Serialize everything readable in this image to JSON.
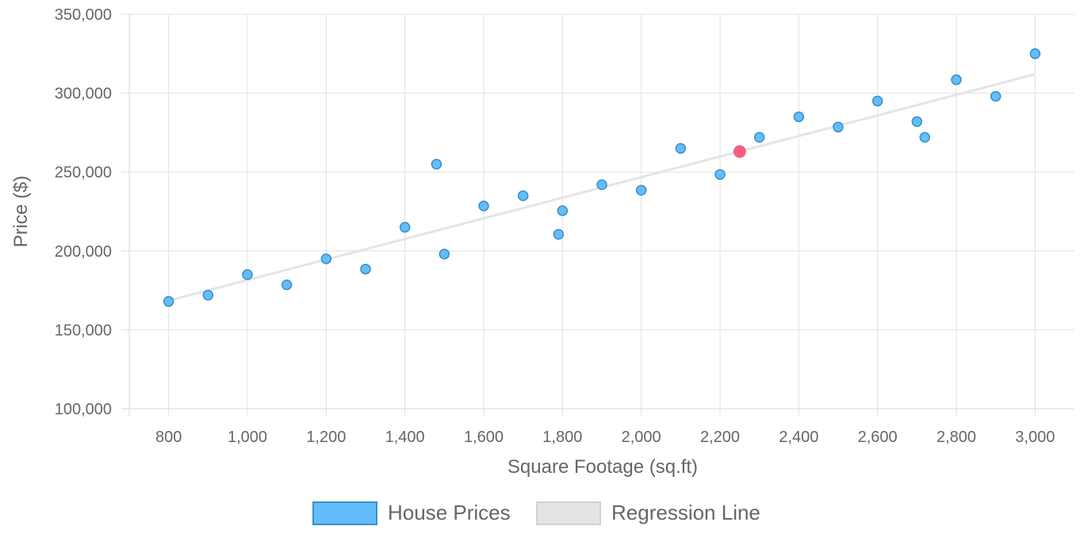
{
  "chart_data": {
    "type": "scatter",
    "title": "",
    "xlabel": "Square Footage (sq.ft)",
    "ylabel": "Price ($)",
    "xlim": [
      700,
      3100
    ],
    "ylim": [
      100000,
      350000
    ],
    "x_ticks": [
      800,
      1000,
      1200,
      1400,
      1600,
      1800,
      2000,
      2200,
      2400,
      2600,
      2800,
      3000
    ],
    "y_ticks": [
      100000,
      150000,
      200000,
      250000,
      300000,
      350000
    ],
    "grid": true,
    "legend_position": "bottom",
    "series": [
      {
        "name": "House Prices",
        "type": "scatter",
        "color": "#63bdfa",
        "border_color": "#3a8ec8",
        "points": [
          {
            "x": 800,
            "y": 168000
          },
          {
            "x": 900,
            "y": 172000
          },
          {
            "x": 1000,
            "y": 185000
          },
          {
            "x": 1100,
            "y": 178500
          },
          {
            "x": 1200,
            "y": 195000
          },
          {
            "x": 1300,
            "y": 188500
          },
          {
            "x": 1400,
            "y": 215000
          },
          {
            "x": 1480,
            "y": 255000
          },
          {
            "x": 1500,
            "y": 198000
          },
          {
            "x": 1600,
            "y": 228500
          },
          {
            "x": 1700,
            "y": 235000
          },
          {
            "x": 1790,
            "y": 210500
          },
          {
            "x": 1800,
            "y": 225500
          },
          {
            "x": 1900,
            "y": 242000
          },
          {
            "x": 2000,
            "y": 238500
          },
          {
            "x": 2100,
            "y": 265000
          },
          {
            "x": 2200,
            "y": 248500
          },
          {
            "x": 2300,
            "y": 272000
          },
          {
            "x": 2400,
            "y": 285000
          },
          {
            "x": 2500,
            "y": 278500
          },
          {
            "x": 2600,
            "y": 295000
          },
          {
            "x": 2700,
            "y": 282000
          },
          {
            "x": 2720,
            "y": 272000
          },
          {
            "x": 2800,
            "y": 308500
          },
          {
            "x": 2900,
            "y": 298000
          },
          {
            "x": 3000,
            "y": 325000
          }
        ]
      },
      {
        "name": "Regression Line",
        "type": "line",
        "color": "#e4e4e4",
        "points": [
          {
            "x": 800,
            "y": 168500
          },
          {
            "x": 3000,
            "y": 312000
          }
        ]
      }
    ],
    "highlight_point": {
      "x": 2250,
      "y": 263000,
      "color": "#f6607f"
    }
  }
}
